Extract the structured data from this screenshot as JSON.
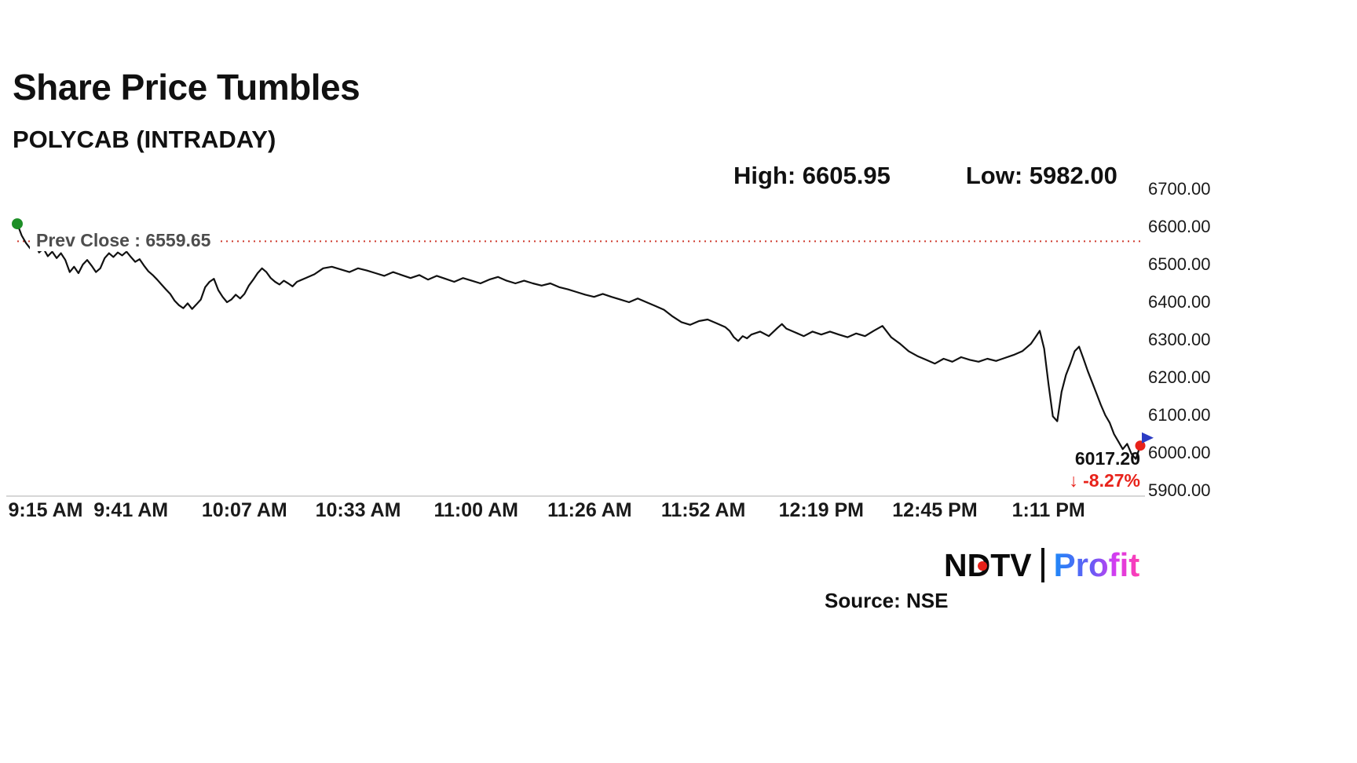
{
  "header": {
    "title": "Share Price Tumbles",
    "subtitle": "POLYCAB (INTRADAY)"
  },
  "stats": {
    "high_label": "High: 6605.95",
    "low_label": "Low: 5982.00"
  },
  "chart_data": {
    "type": "line",
    "symbol": "POLYCAB",
    "title": "Share Price Tumbles",
    "subtitle": "POLYCAB (INTRADAY)",
    "line_color": "#111111",
    "prev_close_color": "#cf3b2f",
    "start_marker_color": "#1d8f27",
    "end_marker_color": "#e8221a",
    "pointer_color": "#2b3cc4",
    "high": 6605.95,
    "low": 5982.0,
    "prev_close": 6559.65,
    "prev_close_label": "Prev Close : 6559.65",
    "last_price": 6017.2,
    "last_price_label": "6017.20",
    "change_label": "↓ -8.27%",
    "change_pct": -8.27,
    "ylim": [
      5900,
      6700
    ],
    "x_range_minutes": [
      0,
      257
    ],
    "y_ticks": [
      {
        "value": 6700,
        "label": "6700.00"
      },
      {
        "value": 6600,
        "label": "6600.00"
      },
      {
        "value": 6500,
        "label": "6500.00"
      },
      {
        "value": 6400,
        "label": "6400.00"
      },
      {
        "value": 6300,
        "label": "6300.00"
      },
      {
        "value": 6200,
        "label": "6200.00"
      },
      {
        "value": 6100,
        "label": "6100.00"
      },
      {
        "value": 6000,
        "label": "6000.00"
      },
      {
        "value": 5900,
        "label": "5900.00"
      }
    ],
    "x_ticks": [
      {
        "t": 0,
        "label": "9:15 AM"
      },
      {
        "t": 26,
        "label": "9:41 AM"
      },
      {
        "t": 52,
        "label": "10:07 AM"
      },
      {
        "t": 78,
        "label": "10:33 AM"
      },
      {
        "t": 105,
        "label": "11:00 AM"
      },
      {
        "t": 131,
        "label": "11:26 AM"
      },
      {
        "t": 157,
        "label": "11:52 AM"
      },
      {
        "t": 184,
        "label": "12:19 PM"
      },
      {
        "t": 210,
        "label": "12:45 PM"
      },
      {
        "t": 236,
        "label": "1:11 PM"
      }
    ],
    "points": [
      [
        0,
        6605.95
      ],
      [
        1,
        6575
      ],
      [
        2,
        6555
      ],
      [
        3,
        6540
      ],
      [
        4,
        6552
      ],
      [
        5,
        6530
      ],
      [
        6,
        6540
      ],
      [
        7,
        6520
      ],
      [
        8,
        6532
      ],
      [
        9,
        6515
      ],
      [
        10,
        6528
      ],
      [
        11,
        6510
      ],
      [
        12,
        6478
      ],
      [
        13,
        6492
      ],
      [
        14,
        6475
      ],
      [
        15,
        6498
      ],
      [
        16,
        6510
      ],
      [
        17,
        6495
      ],
      [
        18,
        6478
      ],
      [
        19,
        6488
      ],
      [
        20,
        6515
      ],
      [
        21,
        6528
      ],
      [
        22,
        6518
      ],
      [
        23,
        6530
      ],
      [
        24,
        6522
      ],
      [
        25,
        6532
      ],
      [
        26,
        6518
      ],
      [
        27,
        6505
      ],
      [
        28,
        6512
      ],
      [
        29,
        6495
      ],
      [
        30,
        6480
      ],
      [
        31,
        6470
      ],
      [
        32,
        6458
      ],
      [
        33,
        6445
      ],
      [
        34,
        6432
      ],
      [
        35,
        6420
      ],
      [
        36,
        6402
      ],
      [
        37,
        6390
      ],
      [
        38,
        6382
      ],
      [
        39,
        6395
      ],
      [
        40,
        6380
      ],
      [
        41,
        6392
      ],
      [
        42,
        6405
      ],
      [
        43,
        6438
      ],
      [
        44,
        6452
      ],
      [
        45,
        6460
      ],
      [
        46,
        6430
      ],
      [
        47,
        6412
      ],
      [
        48,
        6398
      ],
      [
        49,
        6405
      ],
      [
        50,
        6418
      ],
      [
        51,
        6408
      ],
      [
        52,
        6420
      ],
      [
        53,
        6442
      ],
      [
        54,
        6458
      ],
      [
        55,
        6475
      ],
      [
        56,
        6488
      ],
      [
        57,
        6478
      ],
      [
        58,
        6462
      ],
      [
        59,
        6452
      ],
      [
        60,
        6445
      ],
      [
        61,
        6455
      ],
      [
        62,
        6448
      ],
      [
        63,
        6440
      ],
      [
        64,
        6452
      ],
      [
        66,
        6462
      ],
      [
        68,
        6472
      ],
      [
        70,
        6488
      ],
      [
        72,
        6492
      ],
      [
        74,
        6485
      ],
      [
        76,
        6478
      ],
      [
        78,
        6488
      ],
      [
        80,
        6482
      ],
      [
        82,
        6475
      ],
      [
        84,
        6468
      ],
      [
        86,
        6478
      ],
      [
        88,
        6470
      ],
      [
        90,
        6462
      ],
      [
        92,
        6470
      ],
      [
        94,
        6458
      ],
      [
        96,
        6468
      ],
      [
        98,
        6460
      ],
      [
        100,
        6452
      ],
      [
        102,
        6462
      ],
      [
        104,
        6455
      ],
      [
        106,
        6448
      ],
      [
        108,
        6458
      ],
      [
        110,
        6465
      ],
      [
        112,
        6455
      ],
      [
        114,
        6448
      ],
      [
        116,
        6455
      ],
      [
        118,
        6448
      ],
      [
        120,
        6442
      ],
      [
        122,
        6448
      ],
      [
        124,
        6438
      ],
      [
        126,
        6432
      ],
      [
        128,
        6425
      ],
      [
        130,
        6418
      ],
      [
        132,
        6412
      ],
      [
        134,
        6420
      ],
      [
        136,
        6412
      ],
      [
        138,
        6405
      ],
      [
        140,
        6398
      ],
      [
        142,
        6408
      ],
      [
        144,
        6398
      ],
      [
        146,
        6388
      ],
      [
        148,
        6378
      ],
      [
        150,
        6360
      ],
      [
        152,
        6345
      ],
      [
        154,
        6338
      ],
      [
        156,
        6348
      ],
      [
        158,
        6352
      ],
      [
        160,
        6342
      ],
      [
        162,
        6332
      ],
      [
        163,
        6322
      ],
      [
        164,
        6305
      ],
      [
        165,
        6295
      ],
      [
        166,
        6308
      ],
      [
        167,
        6302
      ],
      [
        168,
        6312
      ],
      [
        170,
        6320
      ],
      [
        172,
        6308
      ],
      [
        174,
        6330
      ],
      [
        175,
        6340
      ],
      [
        176,
        6328
      ],
      [
        178,
        6318
      ],
      [
        180,
        6308
      ],
      [
        182,
        6320
      ],
      [
        184,
        6312
      ],
      [
        186,
        6320
      ],
      [
        188,
        6312
      ],
      [
        190,
        6305
      ],
      [
        192,
        6315
      ],
      [
        194,
        6308
      ],
      [
        196,
        6322
      ],
      [
        198,
        6335
      ],
      [
        199,
        6320
      ],
      [
        200,
        6305
      ],
      [
        202,
        6288
      ],
      [
        204,
        6268
      ],
      [
        206,
        6255
      ],
      [
        208,
        6245
      ],
      [
        210,
        6235
      ],
      [
        212,
        6248
      ],
      [
        214,
        6240
      ],
      [
        216,
        6252
      ],
      [
        218,
        6245
      ],
      [
        220,
        6240
      ],
      [
        222,
        6248
      ],
      [
        224,
        6242
      ],
      [
        226,
        6250
      ],
      [
        228,
        6258
      ],
      [
        230,
        6268
      ],
      [
        232,
        6288
      ],
      [
        233,
        6305
      ],
      [
        234,
        6322
      ],
      [
        235,
        6275
      ],
      [
        236,
        6180
      ],
      [
        237,
        6095
      ],
      [
        238,
        6082
      ],
      [
        239,
        6160
      ],
      [
        240,
        6205
      ],
      [
        241,
        6235
      ],
      [
        242,
        6268
      ],
      [
        243,
        6280
      ],
      [
        244,
        6248
      ],
      [
        245,
        6215
      ],
      [
        246,
        6185
      ],
      [
        247,
        6155
      ],
      [
        248,
        6125
      ],
      [
        249,
        6098
      ],
      [
        250,
        6078
      ],
      [
        251,
        6048
      ],
      [
        252,
        6028
      ],
      [
        253,
        6008
      ],
      [
        254,
        6022
      ],
      [
        255,
        5995
      ],
      [
        256,
        5982
      ],
      [
        257,
        6017.2
      ]
    ]
  },
  "footer": {
    "source": "Source: NSE",
    "logo": {
      "ndtv": "NDTV",
      "profit": "Profit"
    }
  }
}
